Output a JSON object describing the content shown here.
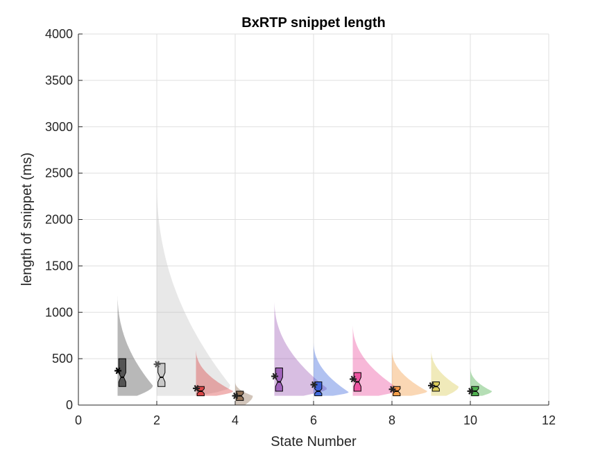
{
  "chart_data": {
    "type": "violin",
    "title": "BxRTP snippet length",
    "xlabel": "State Number",
    "ylabel": "length of snippet (ms)",
    "xlim": [
      0,
      12
    ],
    "ylim": [
      0,
      4000
    ],
    "xticks": [
      0,
      2,
      4,
      6,
      8,
      10,
      12
    ],
    "yticks": [
      0,
      500,
      1000,
      1500,
      2000,
      2500,
      3000,
      3500,
      4000
    ],
    "grid": true,
    "series": [
      {
        "state": 1,
        "color": "#333333",
        "min": 100,
        "max": 1200,
        "q1": 200,
        "median": 300,
        "q3": 500,
        "mean": 370,
        "peak": 210,
        "width": 0.9
      },
      {
        "state": 2,
        "color": "#bdbdbd",
        "min": 100,
        "max": 2400,
        "q1": 200,
        "median": 300,
        "q3": 450,
        "mean": 440,
        "peak": 200,
        "width": 1.9
      },
      {
        "state": 3,
        "color": "#d62728",
        "min": 100,
        "max": 600,
        "q1": 100,
        "median": 150,
        "q3": 200,
        "mean": 180,
        "peak": 150,
        "width": 0.95
      },
      {
        "state": 4,
        "color": "#7f5a3a",
        "min": 0,
        "max": 250,
        "q1": 50,
        "median": 100,
        "q3": 150,
        "mean": 100,
        "peak": 100,
        "width": 0.45
      },
      {
        "state": 5,
        "color": "#8e44ad",
        "min": 100,
        "max": 1130,
        "q1": 150,
        "median": 250,
        "q3": 400,
        "mean": 310,
        "peak": 180,
        "width": 1.35
      },
      {
        "state": 6,
        "color": "#1f4fd6",
        "min": 100,
        "max": 680,
        "q1": 100,
        "median": 150,
        "q3": 250,
        "mean": 220,
        "peak": 140,
        "width": 0.9
      },
      {
        "state": 7,
        "color": "#e8338f",
        "min": 100,
        "max": 870,
        "q1": 150,
        "median": 250,
        "q3": 350,
        "mean": 280,
        "peak": 170,
        "width": 1.2
      },
      {
        "state": 8,
        "color": "#f28c28",
        "min": 100,
        "max": 600,
        "q1": 100,
        "median": 150,
        "q3": 200,
        "mean": 170,
        "peak": 150,
        "width": 0.9
      },
      {
        "state": 9,
        "color": "#d4c23a",
        "min": 100,
        "max": 600,
        "q1": 150,
        "median": 200,
        "q3": 250,
        "mean": 210,
        "peak": 200,
        "width": 0.7
      },
      {
        "state": 10,
        "color": "#2ca02c",
        "min": 100,
        "max": 400,
        "q1": 100,
        "median": 150,
        "q3": 200,
        "mean": 150,
        "peak": 150,
        "width": 0.55
      }
    ]
  }
}
